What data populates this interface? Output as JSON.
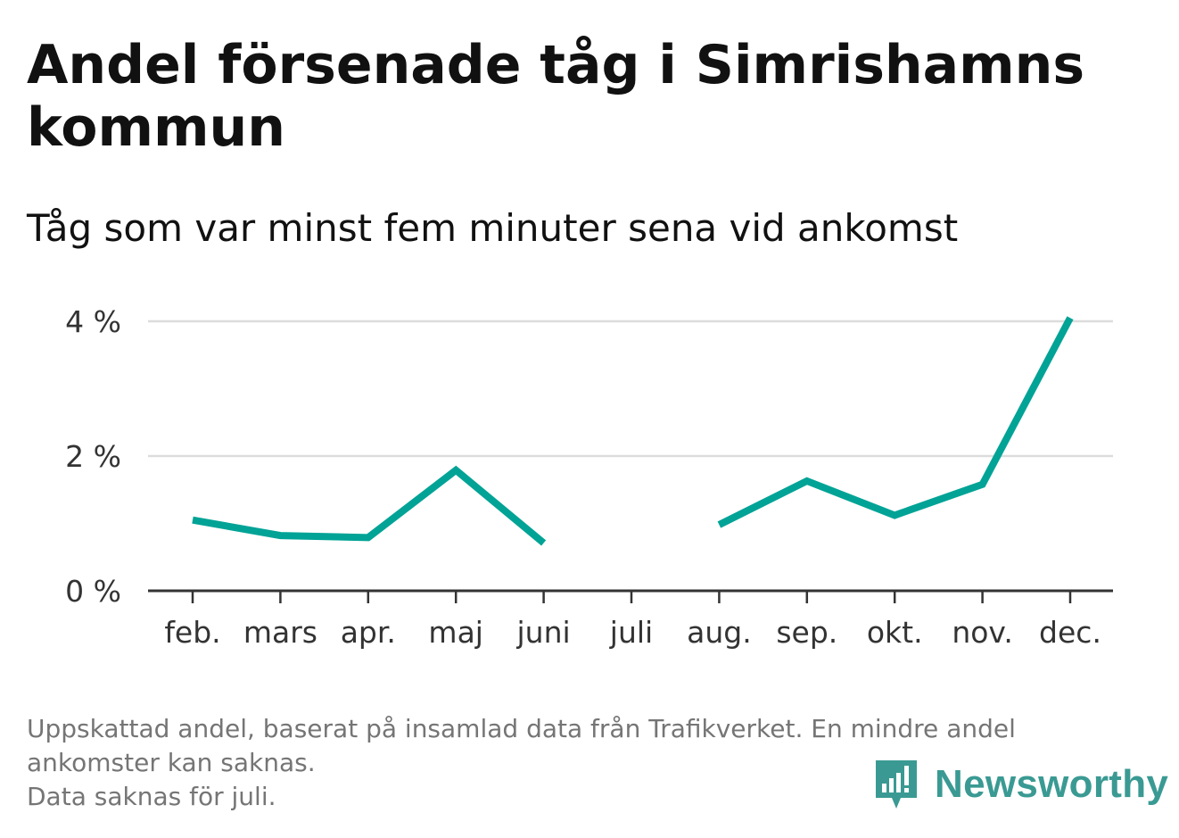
{
  "title": "Andel försenade tåg i Simrishamns kommun",
  "subtitle": "Tåg som var minst fem minuter sena vid ankomst",
  "footnote": {
    "line1": "Uppskattad andel, baserat på insamlad data från Trafikverket. En mindre andel",
    "line2": "ankomster kan saknas.",
    "line3": "Data saknas för juli."
  },
  "brand": {
    "name": "Newsworthy",
    "color": "#3a9a93",
    "icon": "bar-chart-speech-bubble-icon"
  },
  "chart_data": {
    "type": "line",
    "title": "Andel försenade tåg i Simrishamns kommun",
    "subtitle": "Tåg som var minst fem minuter sena vid ankomst",
    "categories": [
      "feb.",
      "mars",
      "apr.",
      "maj",
      "juni",
      "juli",
      "aug.",
      "sep.",
      "okt.",
      "nov.",
      "dec."
    ],
    "series": [
      {
        "values": [
          1.05,
          0.82,
          0.79,
          1.79,
          0.71,
          null,
          0.98,
          1.63,
          1.12,
          1.58,
          4.05
        ],
        "color": "#00a396"
      }
    ],
    "ylim": [
      0,
      4
    ],
    "yticks": [
      0,
      2,
      4
    ],
    "ytick_labels": [
      "0 %",
      "2 %",
      "4 %"
    ],
    "grid": true,
    "legend": "none"
  }
}
